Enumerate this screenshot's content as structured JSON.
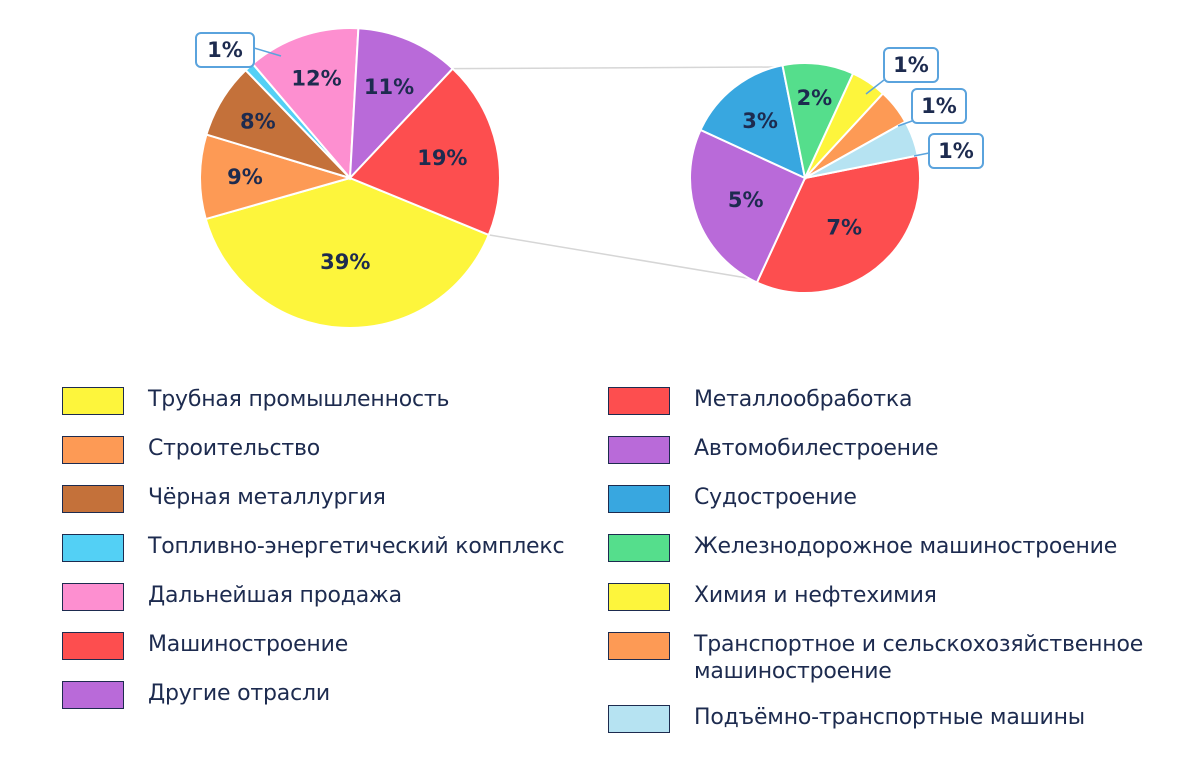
{
  "chart_data": [
    {
      "type": "pie",
      "values": [
        39,
        9,
        8,
        1,
        12,
        11,
        19
      ],
      "data_labels": [
        "39%",
        "9%",
        "8%",
        "1%",
        "12%",
        "11%",
        "19%"
      ],
      "series_names": [
        "Трубная промышленность",
        "Строительство",
        "Чёрная металлургия",
        "Топливно-энергетический комплекс",
        "Дальнейшая продажа",
        "Другие отрасли",
        "Машиностроение"
      ],
      "colors": [
        "#fdf53c",
        "#fd9a55",
        "#c4713a",
        "#53d0f5",
        "#fd8fd0",
        "#b96ad9",
        "#fd4e4f"
      ]
    },
    {
      "type": "pie",
      "values": [
        7,
        5,
        3,
        2,
        1,
        1,
        1
      ],
      "data_labels": [
        "7%",
        "5%",
        "3%",
        "2%",
        "1%",
        "1%",
        "1%"
      ],
      "series_names": [
        "Металлообработка",
        "Автомобилестроение",
        "Судостроение",
        "Железнодорожное машиностроение",
        "Химия и нефтехимия",
        "Транспортное и сельскохозяйственное машиностроение",
        "Подъёмно-транспортные машины"
      ],
      "colors": [
        "#fd4e4f",
        "#b96ad9",
        "#38a7e0",
        "#55de8c",
        "#fdf53c",
        "#fd9a55",
        "#b6e3f2"
      ]
    }
  ],
  "legend": {
    "left": [
      {
        "label": "Трубная промышленность",
        "color": "#fdf53c"
      },
      {
        "label": "Строительство",
        "color": "#fd9a55"
      },
      {
        "label": "Чёрная металлургия",
        "color": "#c4713a"
      },
      {
        "label": "Топливно-энергетический комплекс",
        "color": "#53d0f5"
      },
      {
        "label": "Дальнейшая продажа",
        "color": "#fd8fd0"
      },
      {
        "label": "Машиностроение",
        "color": "#fd4e4f"
      },
      {
        "label": "Другие отрасли",
        "color": "#b96ad9"
      }
    ],
    "right": [
      {
        "label": "Металлообработка",
        "color": "#fd4e4f"
      },
      {
        "label": "Автомобилестроение",
        "color": "#b96ad9"
      },
      {
        "label": "Судостроение",
        "color": "#38a7e0"
      },
      {
        "label": "Железнодорожное машиностроение",
        "color": "#55de8c"
      },
      {
        "label": "Химия и нефтехимия",
        "color": "#fdf53c"
      },
      {
        "label": "Транспортное и сельскохозяйственное машиностроение",
        "color": "#fd9a55"
      },
      {
        "label": "Подъёмно-транспортные машины",
        "color": "#b6e3f2"
      }
    ]
  }
}
